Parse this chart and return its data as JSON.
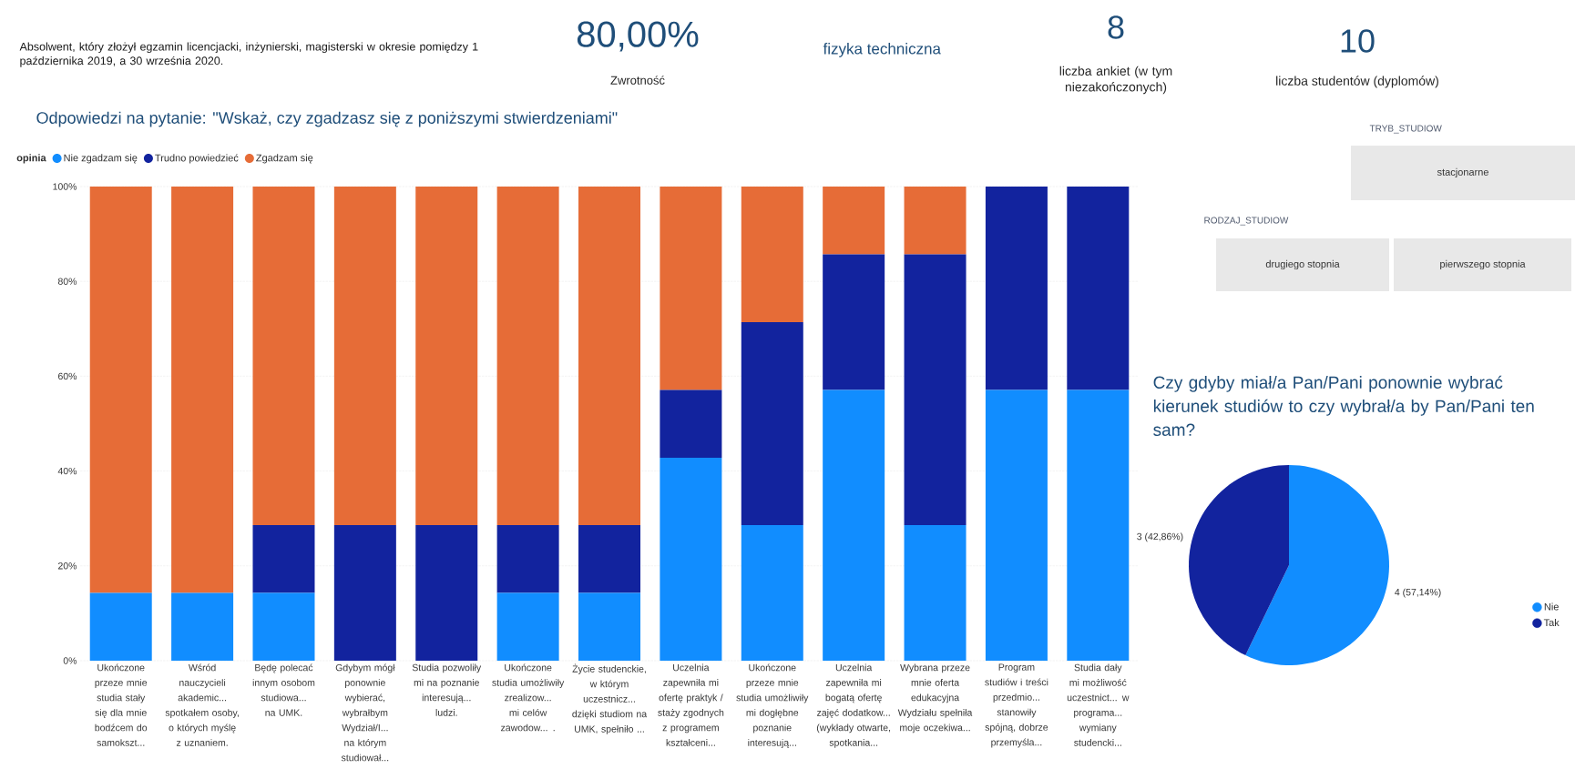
{
  "chart_data": [
    {
      "type": "other",
      "annotations": [
        "Absolwent, który złożył egzamin licencjacki, inżynierski, magisterski w okresie pomiędzy 1 października 2019, a 30 września 2020.",
        "80,00%",
        "Zwrotność",
        "fizyka techniczna",
        "8",
        "liczba ankiet (w tym niezakończonych)",
        "10",
        "liczba studentów (dyplomów)"
      ]
    },
    {
      "type": "bar",
      "stacked": true,
      "title": "Odpowiedzi na pytanie: \"Wskaż, czy zgadzasz się z poniższymi stwierdzeniami\"",
      "legend_title": "opinia",
      "legend": "top left",
      "grid": "y",
      "categories": [
        "Ukończone przeze mnie studia stały się dla mnie bodźcem do samokszt...",
        "Wśród nauczycieli akademic... spotkałem osoby, o których myślę z uznaniem.",
        "Będę polecać innym osobom studiowa... na UMK.",
        "Gdybym mógł ponownie wybierać, wybrałbym Wydział/I... na którym studiował...",
        "Studia pozwoliły mi na poznanie interesują... ludzi.",
        "Ukończone studia umożliwiły zrealizow... mi celów zawodow... .",
        "Życie studenckie, w którym uczestnicz... dzięki studiom na UMK, spełniło ...",
        "Uczelnia zapewniła mi ofertę praktyk / staży zgodnych z programem kształceni...",
        "Ukończone przeze mnie studia umożliwiły mi dogłębne poznanie interesują...",
        "Uczelnia zapewniła mi bogatą ofertę zajęć dodatkow... (wykłady otwarte, spotkania...",
        "Wybrana przeze mnie oferta edukacyjna Wydziału spełniła moje oczekiwa...",
        "Program studiów i treści przedmio... stanowiły spójną, dobrze przemyśla...",
        "Studia dały mi możliwość uczestnict... w programa... wymiany studencki..."
      ],
      "ylim": [
        0,
        100
      ],
      "yticks": [
        {
          "value": 0,
          "label": "0%"
        },
        {
          "value": 20,
          "label": "20%"
        },
        {
          "value": 40,
          "label": "40%"
        },
        {
          "value": 60,
          "label": "60%"
        },
        {
          "value": 80,
          "label": "80%"
        },
        {
          "value": 100,
          "label": "100%"
        }
      ],
      "series": [
        {
          "name": "Nie zgadzam się",
          "color": "#118dff",
          "values": [
            14.3,
            14.3,
            14.3,
            0,
            0,
            14.3,
            14.3,
            42.8,
            28.6,
            57.1,
            28.6,
            57.1,
            57.1
          ]
        },
        {
          "name": "Trudno powiedzieć",
          "color": "#12239e",
          "values": [
            0,
            0,
            14.3,
            28.6,
            28.6,
            14.3,
            14.3,
            14.3,
            42.8,
            28.6,
            57.1,
            42.9,
            42.9
          ]
        },
        {
          "name": "Zgadzam się",
          "color": "#e66c37",
          "values": [
            85.7,
            85.7,
            71.4,
            71.4,
            71.4,
            71.4,
            71.4,
            42.9,
            28.6,
            14.3,
            14.3,
            0,
            0
          ]
        }
      ]
    },
    {
      "type": "other",
      "annotations": [
        "TRYB_STUDIOW",
        "stacjonarne",
        "RODZAJ_STUDIOW",
        "drugiego stopnia",
        "pierwszego stopnia"
      ]
    },
    {
      "type": "pie",
      "title": "Czy gdyby miał/a Pan/Pani ponownie wybrać kierunek studiów to czy wybrał/a by Pan/Pani ten sam?",
      "categories": [
        "Nie",
        "Tak"
      ],
      "values": [
        4,
        3
      ],
      "colors": [
        "#118dff",
        "#12239e"
      ],
      "value_labels": [
        "4 (57,14%)",
        "3 (42,86%)"
      ],
      "legend": "right"
    }
  ]
}
